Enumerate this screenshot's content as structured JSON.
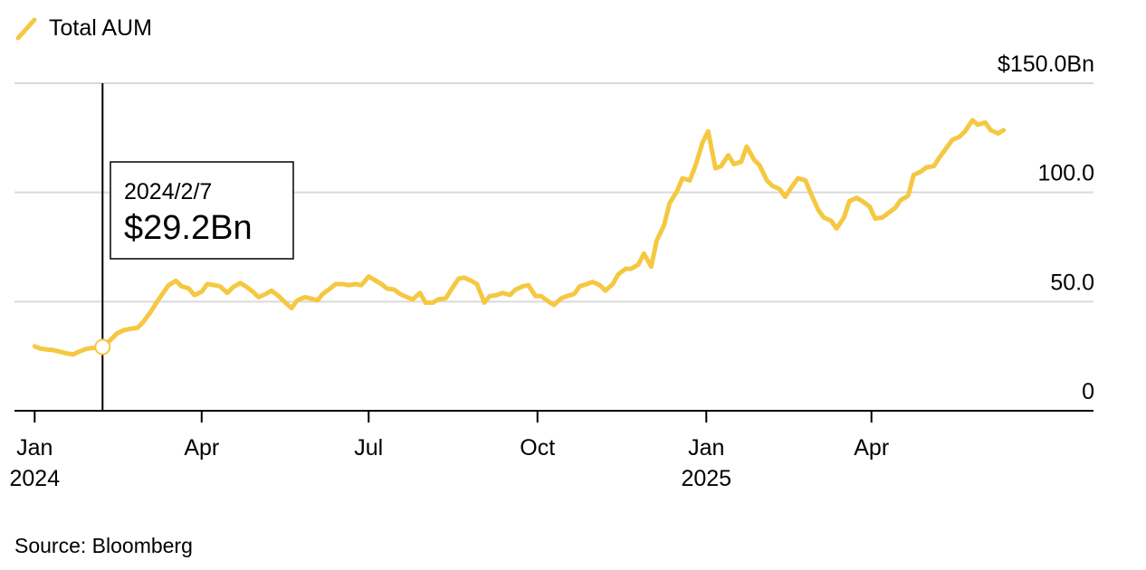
{
  "legend": {
    "label": "Total AUM",
    "color": "#F5C842"
  },
  "source": "Source: Bloomberg",
  "tooltip": {
    "date": "2024/2/7",
    "value": "$29.2Bn"
  },
  "chart_data": {
    "type": "line",
    "title": "",
    "xlabel": "",
    "ylabel": "",
    "ylim": [
      0,
      150
    ],
    "yticks": [
      {
        "value": 0,
        "label": "0"
      },
      {
        "value": 50,
        "label": "50.0"
      },
      {
        "value": 100,
        "label": "100.0"
      },
      {
        "value": 150,
        "label": "$150.0Bn"
      }
    ],
    "xticks": [
      {
        "date": "2024-01-01",
        "label": "Jan",
        "sublabel": "2024"
      },
      {
        "date": "2024-04-01",
        "label": "Apr",
        "sublabel": ""
      },
      {
        "date": "2024-07-01",
        "label": "Jul",
        "sublabel": ""
      },
      {
        "date": "2024-10-01",
        "label": "Oct",
        "sublabel": ""
      },
      {
        "date": "2025-01-01",
        "label": "Jan",
        "sublabel": "2025"
      },
      {
        "date": "2025-04-01",
        "label": "Apr",
        "sublabel": ""
      }
    ],
    "xlim": [
      "2023-12-21",
      "2025-07-31"
    ],
    "grid": true,
    "legend_position": "top-left",
    "highlight": {
      "date": "2024-02-07",
      "value": 29.2
    },
    "series": [
      {
        "name": "Total AUM",
        "color": "#F5C842",
        "points": [
          [
            "2024-01-01",
            29.5
          ],
          [
            "2024-01-04",
            28.5
          ],
          [
            "2024-01-08",
            28.0
          ],
          [
            "2024-01-11",
            27.8
          ],
          [
            "2024-01-15",
            27.0
          ],
          [
            "2024-01-18",
            26.3
          ],
          [
            "2024-01-22",
            25.8
          ],
          [
            "2024-01-25",
            27.0
          ],
          [
            "2024-01-29",
            28.3
          ],
          [
            "2024-02-01",
            28.7
          ],
          [
            "2024-02-05",
            29.0
          ],
          [
            "2024-02-07",
            29.2
          ],
          [
            "2024-02-09",
            30.5
          ],
          [
            "2024-02-12",
            33.0
          ],
          [
            "2024-02-15",
            35.5
          ],
          [
            "2024-02-19",
            37.0
          ],
          [
            "2024-02-22",
            37.5
          ],
          [
            "2024-02-26",
            38.0
          ],
          [
            "2024-02-29",
            40.5
          ],
          [
            "2024-03-04",
            45.0
          ],
          [
            "2024-03-07",
            49.0
          ],
          [
            "2024-03-11",
            54.0
          ],
          [
            "2024-03-14",
            57.5
          ],
          [
            "2024-03-18",
            59.5
          ],
          [
            "2024-03-21",
            57.0
          ],
          [
            "2024-03-25",
            56.0
          ],
          [
            "2024-03-28",
            53.0
          ],
          [
            "2024-04-01",
            54.5
          ],
          [
            "2024-04-04",
            58.0
          ],
          [
            "2024-04-08",
            57.5
          ],
          [
            "2024-04-11",
            57.0
          ],
          [
            "2024-04-15",
            54.0
          ],
          [
            "2024-04-18",
            56.5
          ],
          [
            "2024-04-22",
            58.5
          ],
          [
            "2024-04-25",
            57.0
          ],
          [
            "2024-04-29",
            54.5
          ],
          [
            "2024-05-02",
            52.0
          ],
          [
            "2024-05-06",
            53.5
          ],
          [
            "2024-05-09",
            55.0
          ],
          [
            "2024-05-13",
            52.5
          ],
          [
            "2024-05-16",
            50.0
          ],
          [
            "2024-05-20",
            47.0
          ],
          [
            "2024-05-23",
            50.5
          ],
          [
            "2024-05-27",
            52.0
          ],
          [
            "2024-05-30",
            51.5
          ],
          [
            "2024-06-03",
            50.5
          ],
          [
            "2024-06-06",
            53.5
          ],
          [
            "2024-06-10",
            56.0
          ],
          [
            "2024-06-13",
            58.0
          ],
          [
            "2024-06-17",
            58.0
          ],
          [
            "2024-06-20",
            57.5
          ],
          [
            "2024-06-24",
            58.0
          ],
          [
            "2024-06-27",
            57.5
          ],
          [
            "2024-07-01",
            61.5
          ],
          [
            "2024-07-04",
            60.0
          ],
          [
            "2024-07-08",
            58.0
          ],
          [
            "2024-07-11",
            56.0
          ],
          [
            "2024-07-15",
            55.5
          ],
          [
            "2024-07-18",
            53.5
          ],
          [
            "2024-07-22",
            52.0
          ],
          [
            "2024-07-25",
            51.0
          ],
          [
            "2024-07-29",
            54.0
          ],
          [
            "2024-08-01",
            49.5
          ],
          [
            "2024-08-05",
            49.5
          ],
          [
            "2024-08-08",
            51.0
          ],
          [
            "2024-08-12",
            51.5
          ],
          [
            "2024-08-15",
            55.5
          ],
          [
            "2024-08-19",
            60.5
          ],
          [
            "2024-08-22",
            61.0
          ],
          [
            "2024-08-26",
            59.5
          ],
          [
            "2024-08-29",
            58.0
          ],
          [
            "2024-09-02",
            49.5
          ],
          [
            "2024-09-05",
            52.5
          ],
          [
            "2024-09-09",
            53.0
          ],
          [
            "2024-09-12",
            54.0
          ],
          [
            "2024-09-16",
            53.0
          ],
          [
            "2024-09-19",
            55.5
          ],
          [
            "2024-09-23",
            57.0
          ],
          [
            "2024-09-26",
            57.5
          ],
          [
            "2024-09-30",
            52.5
          ],
          [
            "2024-10-03",
            52.5
          ],
          [
            "2024-10-07",
            50.0
          ],
          [
            "2024-10-10",
            48.5
          ],
          [
            "2024-10-14",
            51.5
          ],
          [
            "2024-10-17",
            52.5
          ],
          [
            "2024-10-21",
            53.5
          ],
          [
            "2024-10-24",
            57.0
          ],
          [
            "2024-10-28",
            58.0
          ],
          [
            "2024-10-31",
            59.0
          ],
          [
            "2024-11-04",
            57.5
          ],
          [
            "2024-11-07",
            55.0
          ],
          [
            "2024-11-11",
            58.0
          ],
          [
            "2024-11-14",
            62.5
          ],
          [
            "2024-11-18",
            65.0
          ],
          [
            "2024-11-21",
            65.0
          ],
          [
            "2024-11-25",
            67.0
          ],
          [
            "2024-11-28",
            72.0
          ],
          [
            "2024-12-02",
            66.0
          ],
          [
            "2024-12-05",
            78.0
          ],
          [
            "2024-12-09",
            85.0
          ],
          [
            "2024-12-12",
            95.0
          ],
          [
            "2024-12-16",
            100.5
          ],
          [
            "2024-12-19",
            106.5
          ],
          [
            "2024-12-23",
            105.5
          ],
          [
            "2024-12-26",
            112.0
          ],
          [
            "2024-12-30",
            123.0
          ],
          [
            "2025-01-02",
            128.0
          ],
          [
            "2025-01-06",
            111.0
          ],
          [
            "2025-01-09",
            112.0
          ],
          [
            "2025-01-13",
            117.0
          ],
          [
            "2025-01-16",
            113.0
          ],
          [
            "2025-01-20",
            114.0
          ],
          [
            "2025-01-23",
            121.0
          ],
          [
            "2025-01-27",
            115.0
          ],
          [
            "2025-01-30",
            112.5
          ],
          [
            "2025-02-03",
            105.5
          ],
          [
            "2025-02-06",
            103.0
          ],
          [
            "2025-02-10",
            101.5
          ],
          [
            "2025-02-13",
            98.0
          ],
          [
            "2025-02-17",
            103.0
          ],
          [
            "2025-02-20",
            106.5
          ],
          [
            "2025-02-24",
            105.5
          ],
          [
            "2025-02-27",
            99.5
          ],
          [
            "2025-03-03",
            92.0
          ],
          [
            "2025-03-06",
            88.5
          ],
          [
            "2025-03-10",
            87.0
          ],
          [
            "2025-03-13",
            83.5
          ],
          [
            "2025-03-17",
            88.5
          ],
          [
            "2025-03-20",
            96.0
          ],
          [
            "2025-03-24",
            97.5
          ],
          [
            "2025-03-27",
            96.0
          ],
          [
            "2025-03-31",
            93.5
          ],
          [
            "2025-04-03",
            88.0
          ],
          [
            "2025-04-07",
            88.5
          ],
          [
            "2025-04-10",
            90.5
          ],
          [
            "2025-04-14",
            93.0
          ],
          [
            "2025-04-17",
            96.5
          ],
          [
            "2025-04-21",
            98.5
          ],
          [
            "2025-04-24",
            108.0
          ],
          [
            "2025-04-28",
            109.5
          ],
          [
            "2025-05-01",
            111.5
          ],
          [
            "2025-05-05",
            112.0
          ],
          [
            "2025-05-08",
            116.0
          ],
          [
            "2025-05-12",
            120.5
          ],
          [
            "2025-05-15",
            124.0
          ],
          [
            "2025-05-19",
            125.5
          ],
          [
            "2025-05-22",
            128.0
          ],
          [
            "2025-05-26",
            133.0
          ],
          [
            "2025-05-29",
            131.0
          ],
          [
            "2025-06-02",
            132.0
          ],
          [
            "2025-06-05",
            128.5
          ],
          [
            "2025-06-09",
            127.0
          ],
          [
            "2025-06-12",
            128.5
          ]
        ]
      }
    ]
  }
}
